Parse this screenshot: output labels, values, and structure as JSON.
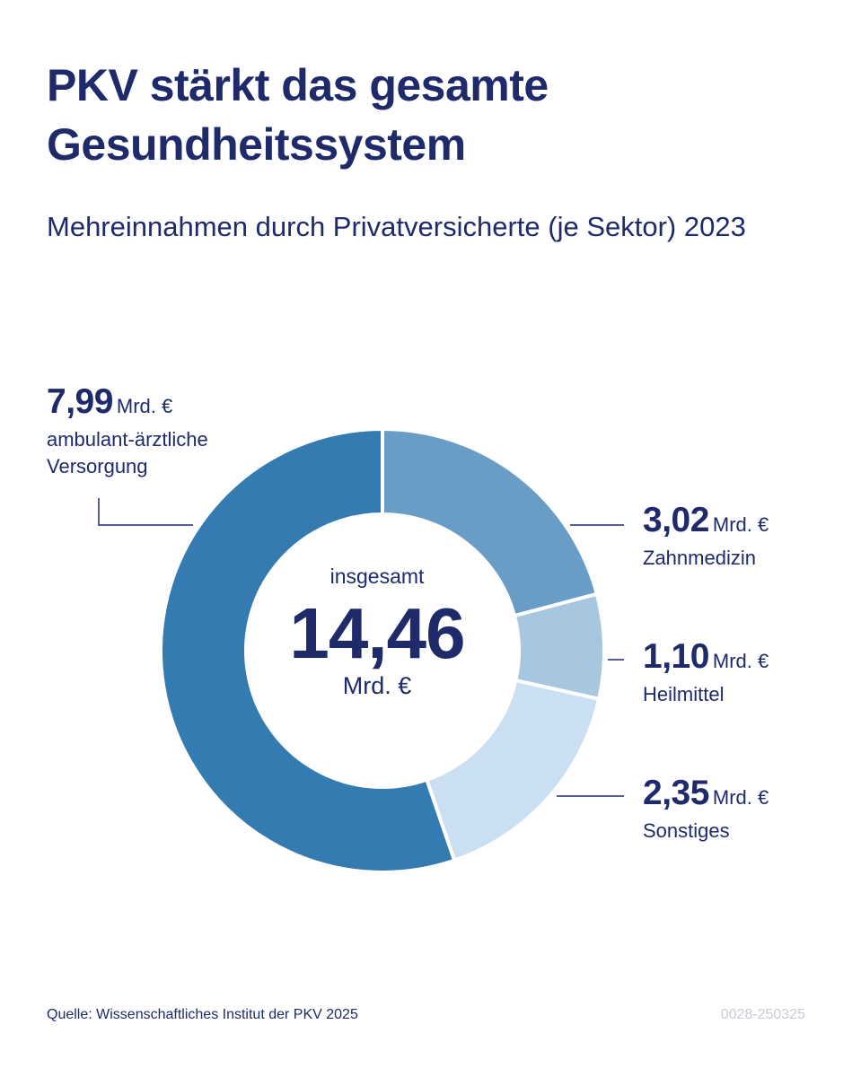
{
  "title": "PKV stärkt das gesamte Gesundheitssystem",
  "subtitle": "Mehreinnahmen durch Privatversicherte (je Sektor) 2023",
  "center": {
    "caption": "insgesamt",
    "total": "14,46",
    "unit": "Mrd. €"
  },
  "labels": [
    {
      "value": "7,99",
      "unit": "Mrd. €",
      "desc": "ambulant-ärztliche Versorgung"
    },
    {
      "value": "3,02",
      "unit": "Mrd. €",
      "desc": "Zahnmedizin"
    },
    {
      "value": "1,10",
      "unit": "Mrd. €",
      "desc": "Heilmittel"
    },
    {
      "value": "2,35",
      "unit": "Mrd. €",
      "desc": "Sonstiges"
    }
  ],
  "footer": {
    "source": "Quelle: Wissenschaftliches Institut der PKV 2025",
    "code": "0028-250325"
  },
  "chart_data": {
    "type": "pie",
    "donut": true,
    "title": "PKV stärkt das gesamte Gesundheitssystem",
    "subtitle": "Mehreinnahmen durch Privatversicherte (je Sektor) 2023",
    "categories": [
      "Zahnmedizin",
      "Heilmittel",
      "Sonstiges",
      "ambulant-ärztliche Versorgung"
    ],
    "values": [
      3.02,
      1.1,
      2.35,
      7.99
    ],
    "colors": [
      "#6a9dc5",
      "#a7c7e1",
      "#cbdff2",
      "#347bb2"
    ],
    "total": 14.46,
    "unit": "Mrd. €"
  }
}
